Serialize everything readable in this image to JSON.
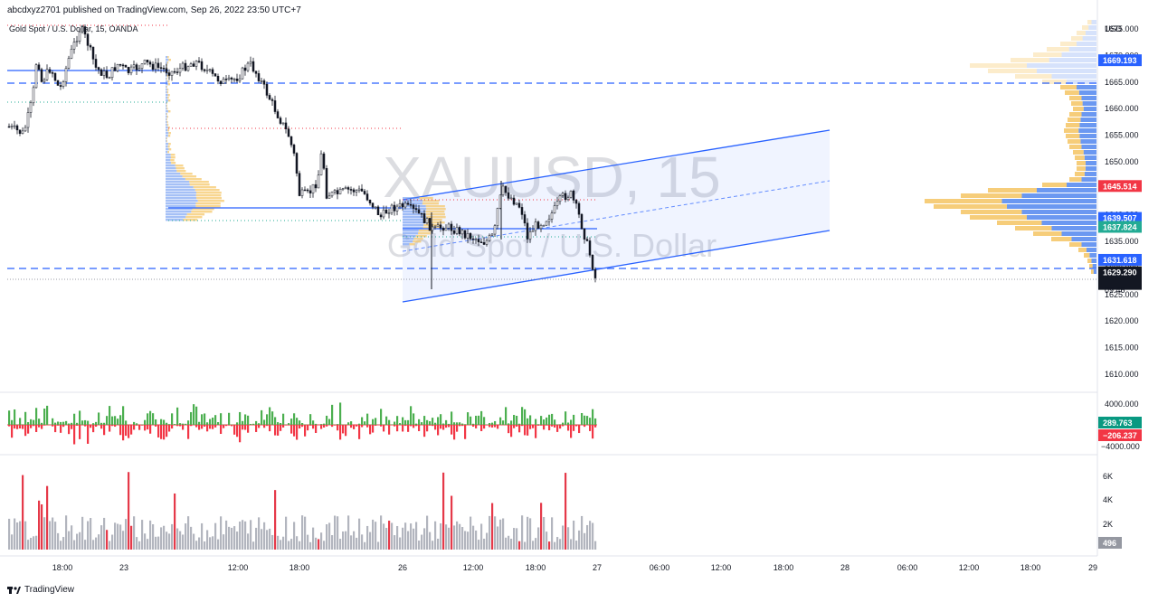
{
  "header": {
    "publisher_line": "abcdxyz2701 published on TradingView.com, Sep 26, 2022 23:50 UTC+7",
    "symbol_line": "Gold Spot / U.S. Dollar, 15, OANDA"
  },
  "watermark": {
    "symbol": "XAUUSD, 15",
    "description": "Gold Spot / U.S. Dollar"
  },
  "footer": {
    "logo_text": "TradingView"
  },
  "price_axis": {
    "currency": "USD",
    "ticks": [
      "1675.000",
      "1670.000",
      "1665.000",
      "1660.000",
      "1655.000",
      "1650.000",
      "1645.000",
      "1640.000",
      "1635.000",
      "1630.000",
      "1625.000",
      "1620.000",
      "1615.000",
      "1610.000"
    ],
    "tick_values": [
      1675,
      1670,
      1665,
      1660,
      1655,
      1650,
      1645,
      1640,
      1635,
      1630,
      1625,
      1620,
      1615,
      1610
    ],
    "tags": [
      {
        "label": "1669.193",
        "value": 1669.193,
        "color": "#2962ff"
      },
      {
        "label": "1645.514",
        "value": 1645.514,
        "color": "#f23645"
      },
      {
        "label": "1639.507",
        "value": 1639.507,
        "color": "#2962ff"
      },
      {
        "label": "1637.824",
        "value": 1637.824,
        "color": "#22ab94"
      },
      {
        "label": "1631.618",
        "value": 1631.618,
        "color": "#2962ff"
      },
      {
        "label": "1629.290",
        "value": 1629.29,
        "color": "#131722"
      }
    ],
    "countdown": "09:46"
  },
  "delta_pane": {
    "ticks": [
      "4000.000",
      "−4000.000"
    ],
    "tags": [
      {
        "label": "289.763",
        "color": "#089981"
      },
      {
        "label": "−206.237",
        "color": "#f23645"
      }
    ]
  },
  "volume_pane": {
    "ticks": [
      "6K",
      "4K",
      "2K"
    ],
    "tag": "496"
  },
  "time_axis": {
    "labels": [
      "18:00",
      "23",
      "12:00",
      "18:00",
      "26",
      "12:00",
      "18:00",
      "27",
      "06:00",
      "12:00",
      "18:00",
      "28",
      "06:00",
      "12:00",
      "18:00",
      "29"
    ]
  },
  "colors": {
    "up": "#26a69a",
    "down": "#ef5350",
    "delta_up": "#4caf50",
    "delta_down": "#f23645",
    "channel": "#2962ff",
    "profile_blue": "#5b8def",
    "profile_yellow": "#f5c86b",
    "volume_gray": "#b2b5be",
    "volume_red": "#e53949"
  }
}
